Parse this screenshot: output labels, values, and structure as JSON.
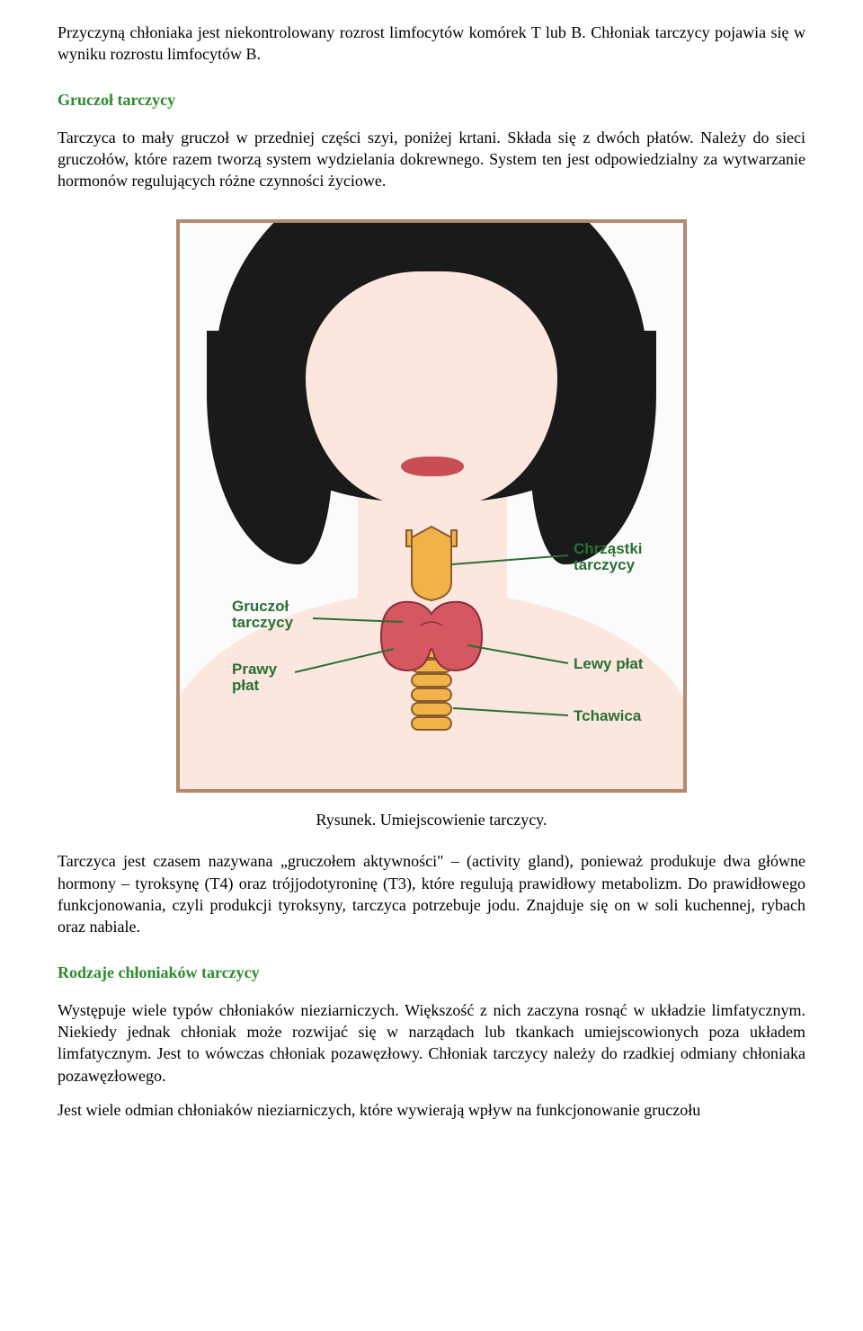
{
  "intro": {
    "p1": "Przyczyną chłoniaka jest niekontrolowany rozrost limfocytów komórek T lub B. Chłoniak tarczycy pojawia się w wyniku rozrostu limfocytów B."
  },
  "section_gland": {
    "heading": "Gruczoł tarczycy",
    "p1": "Tarczyca to mały gruczoł w przedniej części szyi, poniżej krtani. Składa się z dwóch płatów. Należy do sieci gruczołów, które razem tworzą system wydzielania dokrewnego. System ten jest odpowiedzialny za wytwarzanie hormonów regulujących różne czynności życiowe."
  },
  "figure": {
    "caption": "Rysunek. Umiejscowienie tarczycy.",
    "labels": {
      "cartilage": "Chrząstki\ntarczycy",
      "gland": "Gruczoł\ntarczycy",
      "right_lobe": "Prawy\npłat",
      "left_lobe": "Lewy płat",
      "trachea": "Tchawica"
    },
    "colors": {
      "border": "#b48a6e",
      "skin": "#fce7df",
      "hair": "#1a1a1a",
      "lips": "#c84d54",
      "cartilage_fill": "#f2b24a",
      "cartilage_stroke": "#8a5c2e",
      "thyroid_fill": "#d55762",
      "thyroid_stroke": "#8a2e3a",
      "label_color": "#2a6f34"
    }
  },
  "after_fig": {
    "p1": "Tarczyca jest czasem nazywana „gruczołem aktywności\" – (activity gland), ponieważ produkuje dwa główne hormony – tyroksynę (T4) oraz trójjodotyroninę (T3), które regulują prawidłowy metabolizm. Do prawidłowego funkcjonowania, czyli produkcji tyroksyny, tarczyca potrzebuje jodu. Znajduje się on w soli kuchennej, rybach oraz nabiale."
  },
  "section_types": {
    "heading": "Rodzaje chłoniaków tarczycy",
    "p1": "Występuje wiele typów chłoniaków nieziarniczych. Większość z nich zaczyna rosnąć w układzie limfatycznym. Niekiedy jednak chłoniak może rozwijać się w narządach lub tkankach umiejscowionych poza układem limfatycznym. Jest to wówczas chłoniak pozawęzłowy. Chłoniak tarczycy należy do rzadkiej odmiany chłoniaka pozawęzłowego.",
    "p2": "Jest wiele odmian chłoniaków nieziarniczych, które wywierają wpływ na funkcjonowanie gruczołu"
  }
}
